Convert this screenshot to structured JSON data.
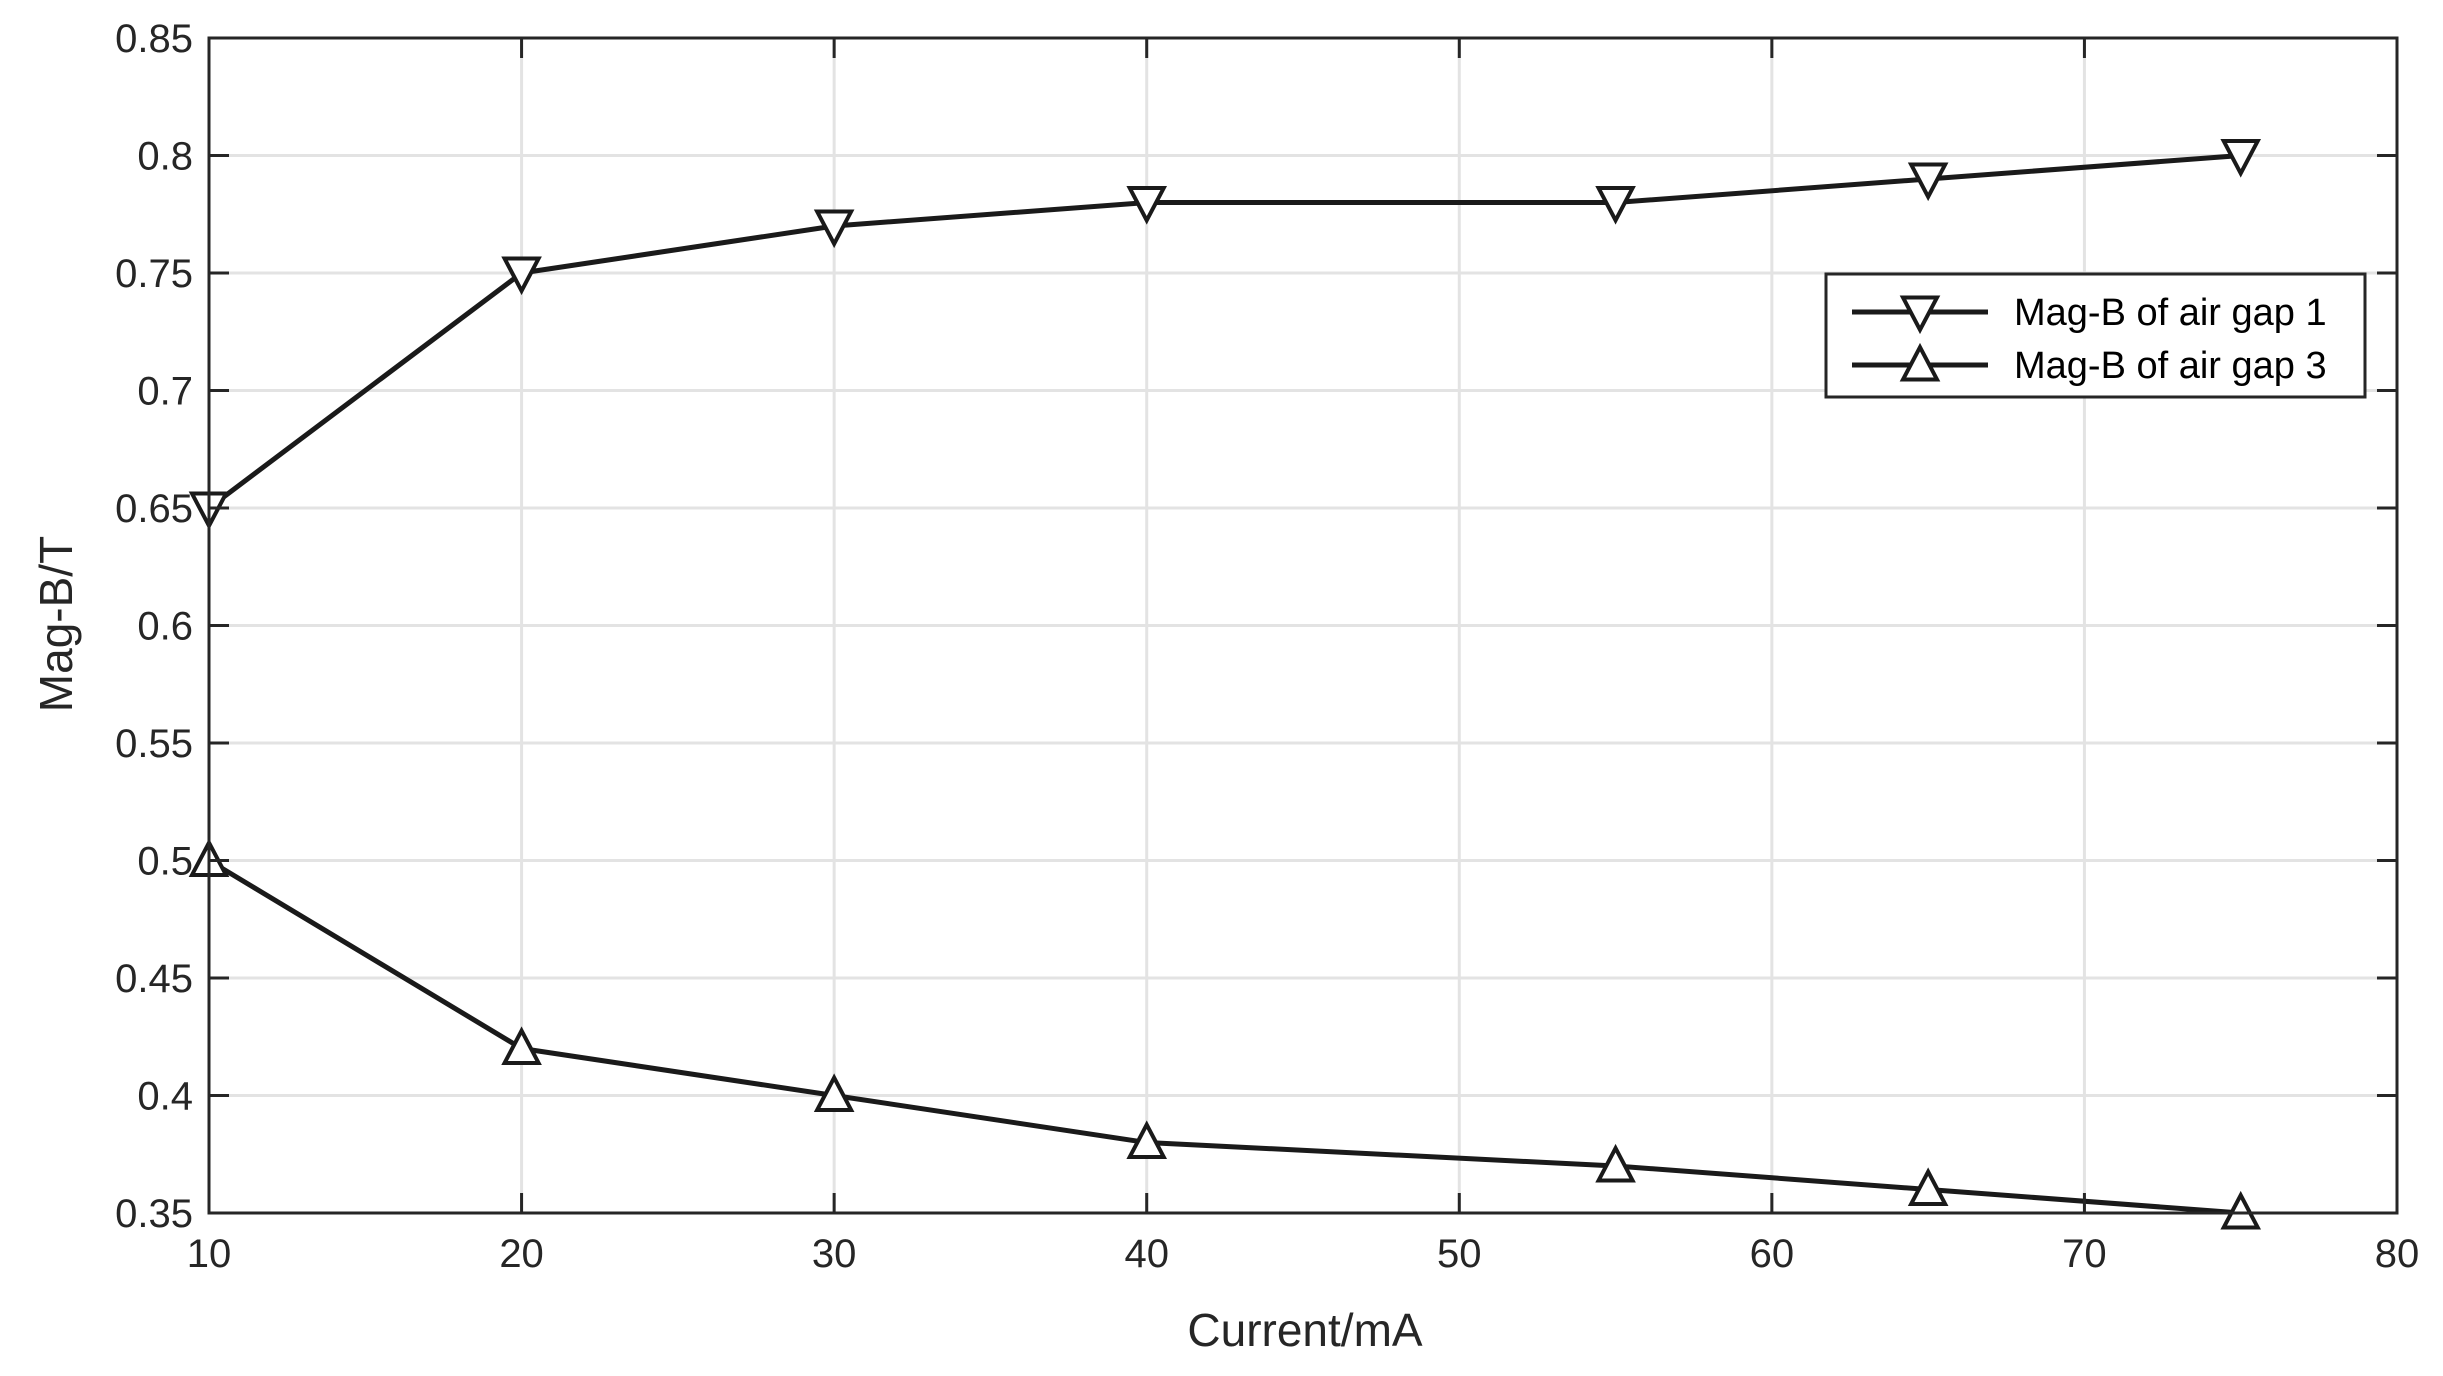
{
  "chart_data": {
    "type": "line",
    "xlabel": "Current/mA",
    "ylabel": "Mag-B/T",
    "xlim": [
      10,
      80
    ],
    "ylim": [
      0.35,
      0.85
    ],
    "xticks": [
      10,
      20,
      30,
      40,
      50,
      60,
      70,
      80
    ],
    "xtick_labels": [
      "10",
      "20",
      "30",
      "40",
      "50",
      "60",
      "70",
      "80"
    ],
    "yticks": [
      0.35,
      0.4,
      0.45,
      0.5,
      0.55,
      0.6,
      0.65,
      0.7,
      0.75,
      0.8,
      0.85
    ],
    "ytick_labels": [
      "0.35",
      "0.4",
      "0.45",
      "0.5",
      "0.55",
      "0.6",
      "0.65",
      "0.7",
      "0.75",
      "0.8",
      "0.85"
    ],
    "grid": true,
    "legend_position": "top-right",
    "series": [
      {
        "name": "Mag-B of air gap 1",
        "marker": "triangle-down",
        "color": "#1a1a1a",
        "x": [
          10,
          20,
          30,
          40,
          55,
          65,
          75
        ],
        "y": [
          0.65,
          0.75,
          0.77,
          0.78,
          0.78,
          0.79,
          0.8
        ]
      },
      {
        "name": "Mag-B of air gap 3",
        "marker": "triangle-up",
        "color": "#1a1a1a",
        "x": [
          10,
          20,
          30,
          40,
          55,
          65,
          75
        ],
        "y": [
          0.5,
          0.42,
          0.4,
          0.38,
          0.37,
          0.36,
          0.35
        ]
      }
    ]
  }
}
